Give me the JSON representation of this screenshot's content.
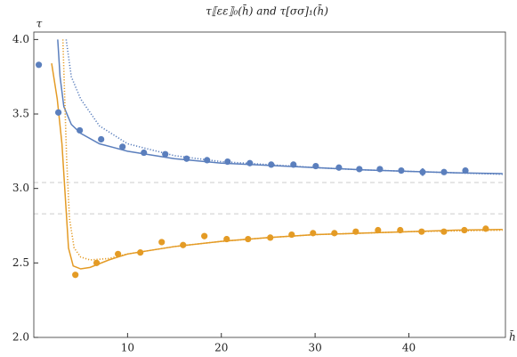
{
  "chart_data": {
    "type": "scatter",
    "title": "τ⟦εε⟧₀(h̄) and τ[σσ]₁(h̄)",
    "xlabel": "h̄",
    "ylabel": "τ",
    "xlim": [
      0,
      50.3
    ],
    "ylim": [
      2.0,
      4.05
    ],
    "xticks": [
      10,
      20,
      30,
      40
    ],
    "yticks": [
      {
        "value": 2,
        "label": "2.0"
      },
      2.5,
      {
        "value": 3,
        "label": "3.0"
      },
      3.5,
      {
        "value": 4,
        "label": "4.0"
      }
    ],
    "reference_lines": [
      3.04,
      2.83
    ],
    "series": [
      {
        "color": "#5b7fbd",
        "x": [
          0.53,
          2.62,
          4.9,
          7.18,
          9.46,
          11.74,
          14.02,
          16.3,
          18.48,
          20.67,
          23.04,
          25.32,
          27.69,
          30.07,
          32.54,
          34.72,
          36.91,
          39.19,
          41.47,
          43.75,
          46.03
        ],
        "values": [
          3.83,
          3.51,
          3.39,
          3.33,
          3.28,
          3.24,
          3.23,
          3.2,
          3.19,
          3.18,
          3.17,
          3.16,
          3.16,
          3.15,
          3.14,
          3.13,
          3.13,
          3.12,
          3.11,
          3.11,
          3.12
        ],
        "errors": [
          0.005,
          0.005,
          0.005,
          0.005,
          0.005,
          0.005,
          0.008,
          0.005,
          0.005,
          0.005,
          0.005,
          0.005,
          0.005,
          0.005,
          0.005,
          0.005,
          0.008,
          0.005,
          0.025,
          0.008,
          0.02
        ]
      },
      {
        "color": "#e49b25",
        "x": [
          4.43,
          6.7,
          8.98,
          11.36,
          13.64,
          15.92,
          18.19,
          20.57,
          22.85,
          25.22,
          27.5,
          29.78,
          32.06,
          34.34,
          36.71,
          39.08,
          41.36,
          43.74,
          45.92,
          48.2
        ],
        "values": [
          2.42,
          2.5,
          2.56,
          2.57,
          2.64,
          2.62,
          2.68,
          2.66,
          2.66,
          2.67,
          2.69,
          2.7,
          2.7,
          2.71,
          2.72,
          2.72,
          2.71,
          2.71,
          2.72,
          2.73
        ],
        "errors": [
          0.005,
          0.005,
          0.008,
          0.005,
          0.02,
          0.005,
          0.02,
          0.02,
          0.008,
          0.01,
          0.015,
          0.005,
          0.005,
          0.008,
          0.005,
          0.008,
          0.008,
          0.01,
          0.008,
          0.008
        ]
      }
    ],
    "curves": [
      {
        "color": "#5b7fbd",
        "style": "solid",
        "x": [
          2.55,
          2.8,
          3.2,
          4,
          5,
          7,
          10,
          15,
          20,
          25,
          30,
          35,
          40,
          45,
          50
        ],
        "values": [
          4.0,
          3.75,
          3.55,
          3.43,
          3.37,
          3.3,
          3.25,
          3.2,
          3.17,
          3.155,
          3.14,
          3.125,
          3.115,
          3.105,
          3.1
        ]
      },
      {
        "color": "#5b7fbd",
        "style": "dotted",
        "x": [
          3.45,
          4,
          5,
          7,
          10,
          15,
          20,
          25,
          30,
          35,
          40,
          45,
          50
        ],
        "values": [
          4.0,
          3.75,
          3.6,
          3.42,
          3.3,
          3.22,
          3.18,
          3.16,
          3.14,
          3.125,
          3.115,
          3.105,
          3.095
        ]
      },
      {
        "color": "#e49b25",
        "style": "solid",
        "x": [
          1.9,
          2.5,
          3,
          3.4,
          3.7,
          4.2,
          5,
          6,
          8,
          10,
          15,
          20,
          25,
          30,
          35,
          40,
          45,
          50
        ],
        "values": [
          3.84,
          3.6,
          3.3,
          2.9,
          2.6,
          2.48,
          2.46,
          2.47,
          2.52,
          2.56,
          2.61,
          2.645,
          2.67,
          2.69,
          2.7,
          2.71,
          2.72,
          2.725
        ]
      },
      {
        "color": "#e49b25",
        "style": "dotted",
        "x": [
          3.1,
          3.5,
          3.8,
          4.3,
          5,
          6,
          8,
          10,
          15,
          20,
          25,
          30,
          35,
          40,
          45,
          50
        ],
        "values": [
          4.0,
          3.2,
          2.8,
          2.6,
          2.54,
          2.52,
          2.53,
          2.56,
          2.61,
          2.645,
          2.67,
          2.69,
          2.7,
          2.71,
          2.715,
          2.72
        ]
      }
    ]
  }
}
